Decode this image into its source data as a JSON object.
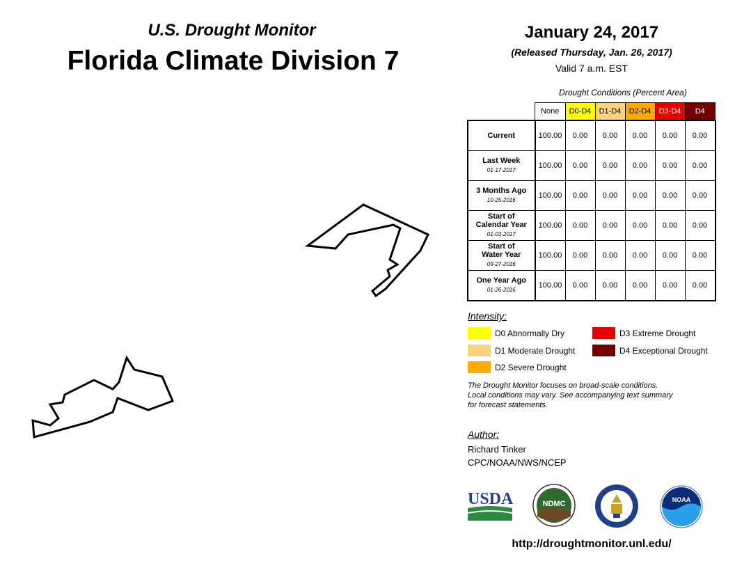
{
  "header": {
    "subtitle": "U.S. Drought Monitor",
    "title": "Florida Climate Division 7",
    "date": "January 24, 2017",
    "released": "(Released Thursday, Jan. 26, 2017)",
    "valid": "Valid 7 a.m. EST"
  },
  "table": {
    "caption": "Drought Conditions (Percent Area)",
    "columns": [
      {
        "label": "None",
        "color": "#ffffff",
        "text_color": "#000000"
      },
      {
        "label": "D0-D4",
        "color": "#ffff00",
        "text_color": "#000000"
      },
      {
        "label": "D1-D4",
        "color": "#fcd37f",
        "text_color": "#000000"
      },
      {
        "label": "D2-D4",
        "color": "#ffaa00",
        "text_color": "#000000"
      },
      {
        "label": "D3-D4",
        "color": "#e60000",
        "text_color": "#ffffff"
      },
      {
        "label": "D4",
        "color": "#730000",
        "text_color": "#ffffff"
      }
    ],
    "rows": [
      {
        "label": "Current",
        "date": "",
        "values": [
          "100.00",
          "0.00",
          "0.00",
          "0.00",
          "0.00",
          "0.00"
        ]
      },
      {
        "label": "Last Week",
        "date": "01-17-2017",
        "values": [
          "100.00",
          "0.00",
          "0.00",
          "0.00",
          "0.00",
          "0.00"
        ]
      },
      {
        "label": "3 Months Ago",
        "date": "10-25-2016",
        "values": [
          "100.00",
          "0.00",
          "0.00",
          "0.00",
          "0.00",
          "0.00"
        ]
      },
      {
        "label": "Start of\nCalendar Year",
        "date": "01-03-2017",
        "values": [
          "100.00",
          "0.00",
          "0.00",
          "0.00",
          "0.00",
          "0.00"
        ]
      },
      {
        "label": "Start of\nWater Year",
        "date": "09-27-2016",
        "values": [
          "100.00",
          "0.00",
          "0.00",
          "0.00",
          "0.00",
          "0.00"
        ]
      },
      {
        "label": "One Year Ago",
        "date": "01-26-2016",
        "values": [
          "100.00",
          "0.00",
          "0.00",
          "0.00",
          "0.00",
          "0.00"
        ]
      }
    ]
  },
  "legend": {
    "title": "Intensity:",
    "items": [
      {
        "label": "D0 Abnormally Dry",
        "color": "#ffff00"
      },
      {
        "label": "D1 Moderate Drought",
        "color": "#fcd37f"
      },
      {
        "label": "D2 Severe Drought",
        "color": "#ffaa00"
      },
      {
        "label": "D3 Extreme Drought",
        "color": "#e60000"
      },
      {
        "label": "D4 Exceptional Drought",
        "color": "#730000"
      }
    ]
  },
  "disclaimer": {
    "line1": "The Drought Monitor focuses on broad-scale conditions.",
    "line2": "Local conditions may vary. See accompanying text summary",
    "line3": "for forecast statements."
  },
  "author": {
    "title": "Author:",
    "name": "Richard Tinker",
    "org": "CPC/NOAA/NWS/NCEP"
  },
  "logos": {
    "usda": "USDA",
    "ndmc": "NDMC",
    "noaa": "NOAA"
  },
  "url": "http://droughtmonitor.unl.edu/"
}
